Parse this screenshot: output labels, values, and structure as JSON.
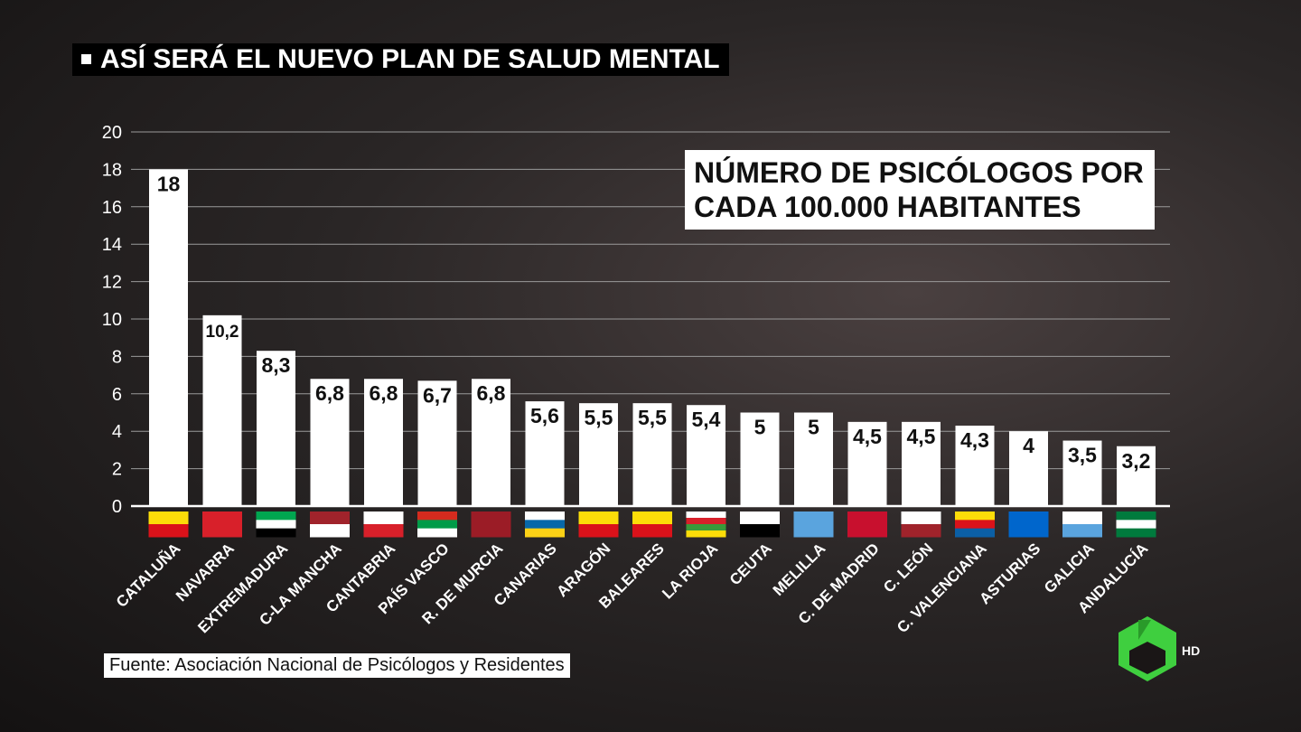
{
  "header": "ASÍ SERÁ EL NUEVO PLAN DE SALUD MENTAL",
  "chart_data": {
    "type": "bar",
    "title": "NÚMERO DE PSICÓLOGOS POR CADA 100.000 HABITANTES",
    "categories": [
      "CATALUÑA",
      "NAVARRA",
      "EXTREMADURA",
      "C-LA MANCHA",
      "CANTABRIA",
      "PAÍS VASCO",
      "R. DE MURCIA",
      "CANARIAS",
      "ARAGÓN",
      "BALEARES",
      "LA RIOJA",
      "CEUTA",
      "MELILLA",
      "C. DE MADRID",
      "C. LEÓN",
      "C. VALENCIANA",
      "ASTURIAS",
      "GALICIA",
      "ANDALUCÍA"
    ],
    "values": [
      18,
      10.2,
      8.3,
      6.8,
      6.8,
      6.7,
      6.8,
      5.6,
      5.5,
      5.5,
      5.4,
      5,
      5,
      4.5,
      4.5,
      4.3,
      4,
      3.5,
      3.2
    ],
    "value_labels": [
      "18",
      "10,2",
      "8,3",
      "6,8",
      "6,8",
      "6,7",
      "6,8",
      "5,6",
      "5,5",
      "5,5",
      "5,4",
      "5",
      "5",
      "4,5",
      "4,5",
      "4,3",
      "4",
      "3,5",
      "3,2"
    ],
    "color": "#ffffff",
    "ylim": [
      0,
      20
    ],
    "yticks": [
      0,
      2,
      4,
      6,
      8,
      10,
      12,
      14,
      16,
      18,
      20
    ],
    "grid": true
  },
  "source": "Fuente: Asociación Nacional de Psicólogos y Residentes",
  "logo": "HD"
}
